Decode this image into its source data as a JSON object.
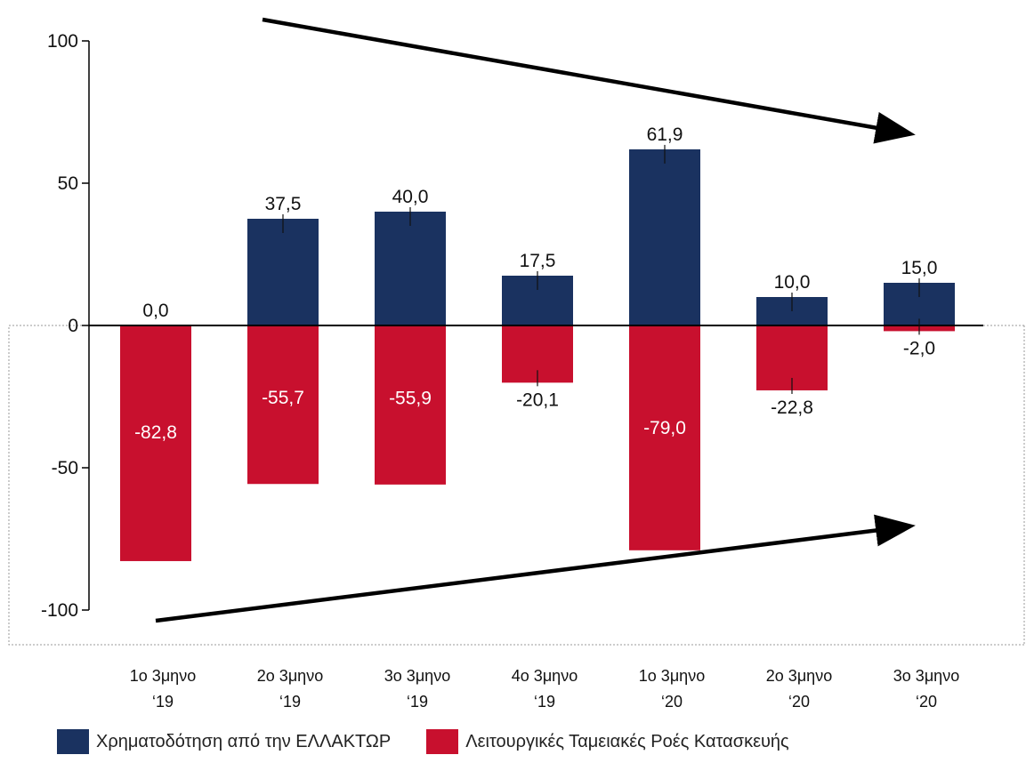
{
  "chart_data": {
    "type": "bar",
    "categories": [
      [
        "1ο 3μηνο",
        "‘19"
      ],
      [
        "2ο 3μηνο",
        "‘19"
      ],
      [
        "3ο 3μηνο",
        "‘19"
      ],
      [
        "4ο 3μηνο",
        "‘19"
      ],
      [
        "1ο 3μηνο",
        "‘20"
      ],
      [
        "2ο 3μηνο",
        "‘20"
      ],
      [
        "3ο 3μηνο",
        "‘20"
      ]
    ],
    "series": [
      {
        "name": "Χρηματοδότηση από την ΕΛΛΑΚΤΩΡ",
        "color": "#1a3260",
        "values": [
          0.0,
          37.5,
          40.0,
          17.5,
          61.9,
          10.0,
          15.0
        ],
        "labels": [
          "0,0",
          "37,5",
          "40,0",
          "17,5",
          "61,9",
          "10,0",
          "15,0"
        ]
      },
      {
        "name": "Λειτουργικές Ταμειακές Ροές Κατασκευής",
        "color": "#c8102e",
        "values": [
          -82.8,
          -55.7,
          -55.9,
          -20.1,
          -79.0,
          -22.8,
          -2.0
        ],
        "labels": [
          "-82,8",
          "-55,7",
          "-55,9",
          "-20,1",
          "-79,0",
          "-22,8",
          "-2,0"
        ]
      }
    ],
    "ylim": [
      -100,
      100
    ],
    "yticks": [
      100,
      50,
      0,
      -50,
      -100
    ],
    "title": "",
    "xlabel": "",
    "ylabel": "",
    "grid": false,
    "legend_position": "bottom",
    "annotations": [
      "downward trend arrow over funding bars",
      "upward trend arrow under operating cash flow bars"
    ]
  }
}
